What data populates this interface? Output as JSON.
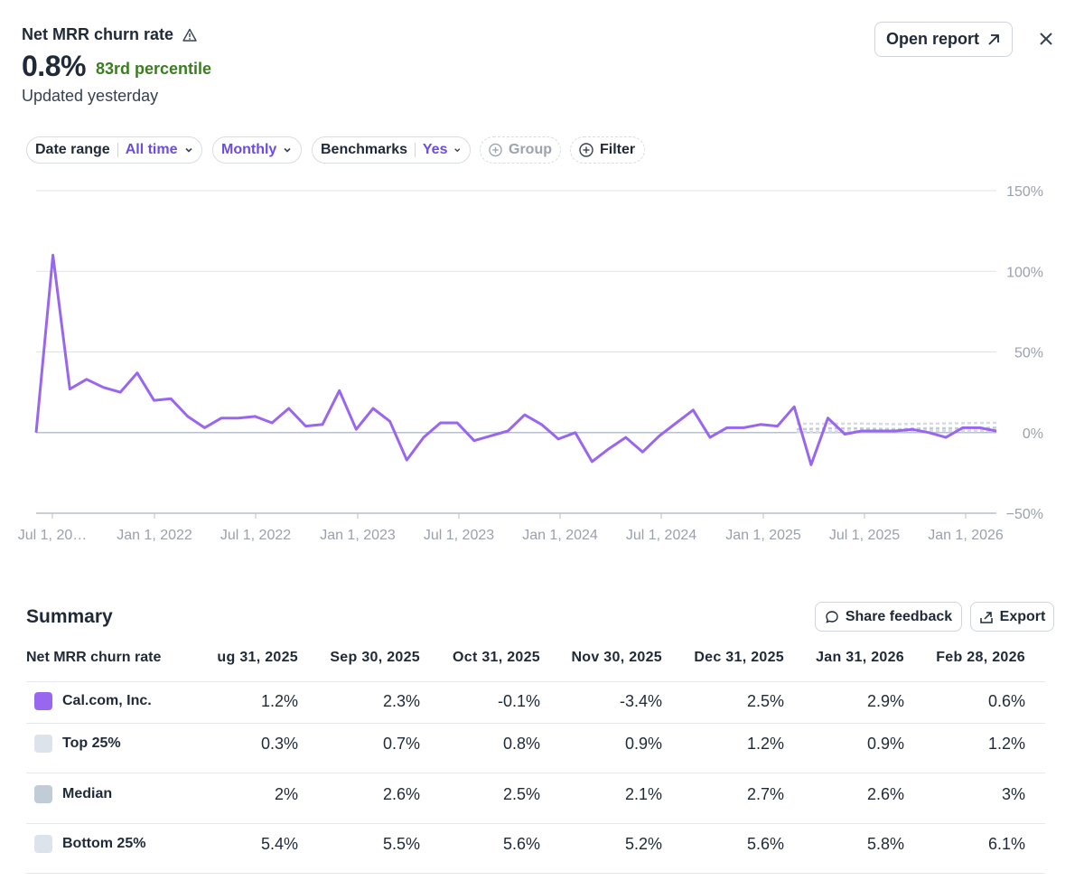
{
  "header": {
    "title": "Net MRR churn rate",
    "value": "0.8%",
    "percentile": "83rd percentile",
    "updated": "Updated yesterday",
    "open_report": "Open report"
  },
  "filters": {
    "date_range_label": "Date range",
    "date_range_value": "All time",
    "interval_value": "Monthly",
    "benchmarks_label": "Benchmarks",
    "benchmarks_value": "Yes",
    "group_label": "Group",
    "filter_label": "Filter"
  },
  "chart_data": {
    "type": "line",
    "title": "Net MRR churn rate",
    "y_ticks": [
      "150%",
      "100%",
      "50%",
      "0%",
      "−50%"
    ],
    "y_tick_values": [
      150,
      100,
      50,
      0,
      -50
    ],
    "ylim": [
      -50,
      150
    ],
    "x_tick_labels": [
      "Jul 1, 20…",
      "Jan 1, 2022",
      "Jul 1, 2022",
      "Jan 1, 2023",
      "Jul 1, 2023",
      "Jan 1, 2024",
      "Jul 1, 2024",
      "Jan 1, 2025",
      "Jul 1, 2025",
      "Jan 1, 2026"
    ],
    "series": [
      {
        "name": "Cal.com, Inc.",
        "color": "#9966f0",
        "values": [
          0,
          110,
          27,
          33,
          28,
          25,
          37,
          20,
          21,
          10,
          3,
          9,
          9,
          10,
          6,
          15,
          4,
          5,
          26,
          2,
          15,
          7,
          -17,
          -3,
          6,
          6,
          -5,
          -2,
          1,
          11,
          5,
          -4,
          0,
          -18,
          -10,
          -3,
          -12,
          -2,
          6,
          14,
          -3,
          3,
          3,
          5,
          4,
          16,
          -20,
          9,
          -1,
          1,
          1,
          1,
          2,
          0,
          -3,
          3,
          3,
          1
        ]
      }
    ],
    "benchmark_series": [
      {
        "name": "Top 25%",
        "values": [
          0.3,
          0.7,
          0.8,
          0.9,
          1.2,
          0.9,
          1.2
        ]
      },
      {
        "name": "Median",
        "values": [
          2,
          2.6,
          2.5,
          2.1,
          2.7,
          2.6,
          3
        ]
      },
      {
        "name": "Bottom 25%",
        "values": [
          5.4,
          5.5,
          5.6,
          5.2,
          5.6,
          5.8,
          6.1
        ]
      }
    ]
  },
  "summary": {
    "title": "Summary",
    "share_feedback": "Share feedback",
    "export": "Export",
    "metric_header": "Net MRR churn rate",
    "columns": [
      "ug 31, 2025",
      "Sep 30, 2025",
      "Oct 31, 2025",
      "Nov 30, 2025",
      "Dec 31, 2025",
      "Jan 31, 2026",
      "Feb 28, 2026"
    ],
    "rows": [
      {
        "label": "Cal.com, Inc.",
        "color": "#9966f0",
        "cells": [
          "1.2%",
          "2.3%",
          "-0.1%",
          "-3.4%",
          "2.5%",
          "2.9%",
          "0.6%"
        ]
      },
      {
        "label": "Top 25%",
        "color": "#dde3ea",
        "cells": [
          "0.3%",
          "0.7%",
          "0.8%",
          "0.9%",
          "1.2%",
          "0.9%",
          "1.2%"
        ]
      },
      {
        "label": "Median",
        "color": "#c2ccd8",
        "cells": [
          "2%",
          "2.6%",
          "2.5%",
          "2.1%",
          "2.7%",
          "2.6%",
          "3%"
        ]
      },
      {
        "label": "Bottom 25%",
        "color": "#dde3ea",
        "cells": [
          "5.4%",
          "5.5%",
          "5.6%",
          "5.2%",
          "5.6%",
          "5.8%",
          "6.1%"
        ]
      }
    ]
  }
}
